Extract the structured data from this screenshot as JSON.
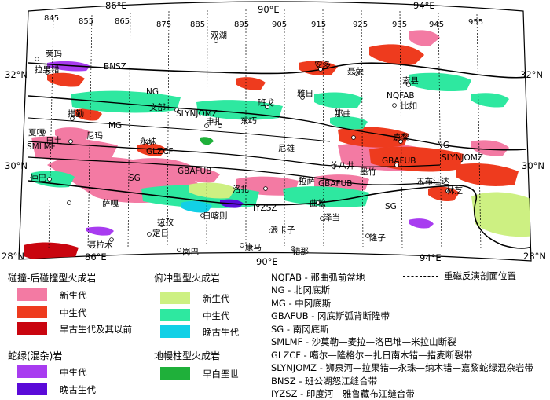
{
  "map": {
    "lon_top": [
      "86°E",
      "90°E",
      "94°E"
    ],
    "lon_bottom": [
      "86°E",
      "90°E",
      "94°E"
    ],
    "lat_left": [
      "32°N",
      "30°N",
      "28°N"
    ],
    "lat_right": [
      "32°N",
      "30°N",
      "28°N"
    ],
    "profile_numbers": [
      "845",
      "855",
      "865",
      "875",
      "885",
      "895",
      "905",
      "915",
      "925",
      "935",
      "945",
      "955"
    ],
    "places": {
      "shuanghu": "双湖",
      "rongma": "荣玛",
      "gaize": "拉果错",
      "anduo": "安多",
      "nierong": "聂荣",
      "suoxian": "索县",
      "biru": "比如",
      "nima": "那曲",
      "baingoin": "班戈",
      "yanshiping": "雅日",
      "wenbu": "文部",
      "dongqiao": "东巧",
      "zhongba": "仲巴",
      "ranwu": "尼玛",
      "cuoqin": "措勤",
      "xuru": "夏嘎",
      "gegong": "日土",
      "shenza": "申扎",
      "yongzhu": "永珠",
      "jiali": "嘉黎",
      "naqu": "尼雄",
      "yangbajing": "羊八井",
      "lhasa": "拉萨",
      "mozhugongka": "墨竹",
      "linzhi": "林芝",
      "shigatse": "日喀则",
      "lhaze": "拉孜",
      "dingri": "定日",
      "nielamu": "聂拉木",
      "gangba": "岗巴",
      "kangma": "康马",
      "langkazi": "浪卡子",
      "cuona": "错那",
      "longzi": "隆子",
      "zedang": "泽当",
      "saga": "萨嘎",
      "gongbu": "工布江达",
      "luozha": "洛扎",
      "qusong": "曲松"
    },
    "belts": {
      "bnsz": "BNSZ",
      "ng1": "NG",
      "slynjomz": "SLYNJOMZ",
      "mg": "MG",
      "smlmf": "SMLMF",
      "glzcf": "GLZCF",
      "gbafub": "GBAFUB",
      "sg": "SG",
      "iyzsz": "IYZSZ",
      "nqfab": "NQFAB",
      "ng2": "NG",
      "slynjomz2": "SLYNJOMZ",
      "gbafub2": "GBAFUB",
      "sg2": "SG",
      "gbafub3": "GBAFUB"
    }
  },
  "legend": {
    "group1": {
      "title": "碰撞-后碰撞型火成岩",
      "items": [
        {
          "label": "新生代",
          "color": "#f37aa3"
        },
        {
          "label": "中生代",
          "color": "#ee3b1e"
        },
        {
          "label": "早古生代及其以前",
          "color": "#c9050f"
        }
      ]
    },
    "group2": {
      "title": "俯冲型型火成岩",
      "items": [
        {
          "label": "新生代",
          "color": "#cdf082"
        },
        {
          "label": "中生代",
          "color": "#2ee8a0"
        },
        {
          "label": "晚古生代",
          "color": "#12d0e6"
        }
      ]
    },
    "group3": {
      "title": "蛇绿(混杂)岩",
      "items": [
        {
          "label": "中生代",
          "color": "#a83cf0"
        },
        {
          "label": "晚古生代",
          "color": "#5a0ad8"
        }
      ]
    },
    "group4": {
      "title": "地幔柱型火成岩",
      "items": [
        {
          "label": "早白垩世",
          "color": "#1fb03a"
        }
      ]
    },
    "abbreviations": [
      "NQFAB - 那曲弧前盆地",
      "NG - 北冈底斯",
      "MG - 中冈底斯",
      "GBAFUB - 冈底斯弧背断隆带",
      "SG - 南冈底斯",
      "SMLMF - 沙莫勒—麦拉—洛巴堆—米拉山断裂",
      "GLZCF - 噶尔—隆格尔—扎日南木错—措麦断裂带",
      "SLYNJOMZ - 狮泉河—拉果错—永珠—纳木错—嘉黎蛇绿混杂岩带",
      "BNSZ - 班公湖怒江缝合带",
      "IYZSZ - 印度河—雅鲁藏布江缝合带"
    ],
    "line_label": "重磁反演剖面位置"
  }
}
